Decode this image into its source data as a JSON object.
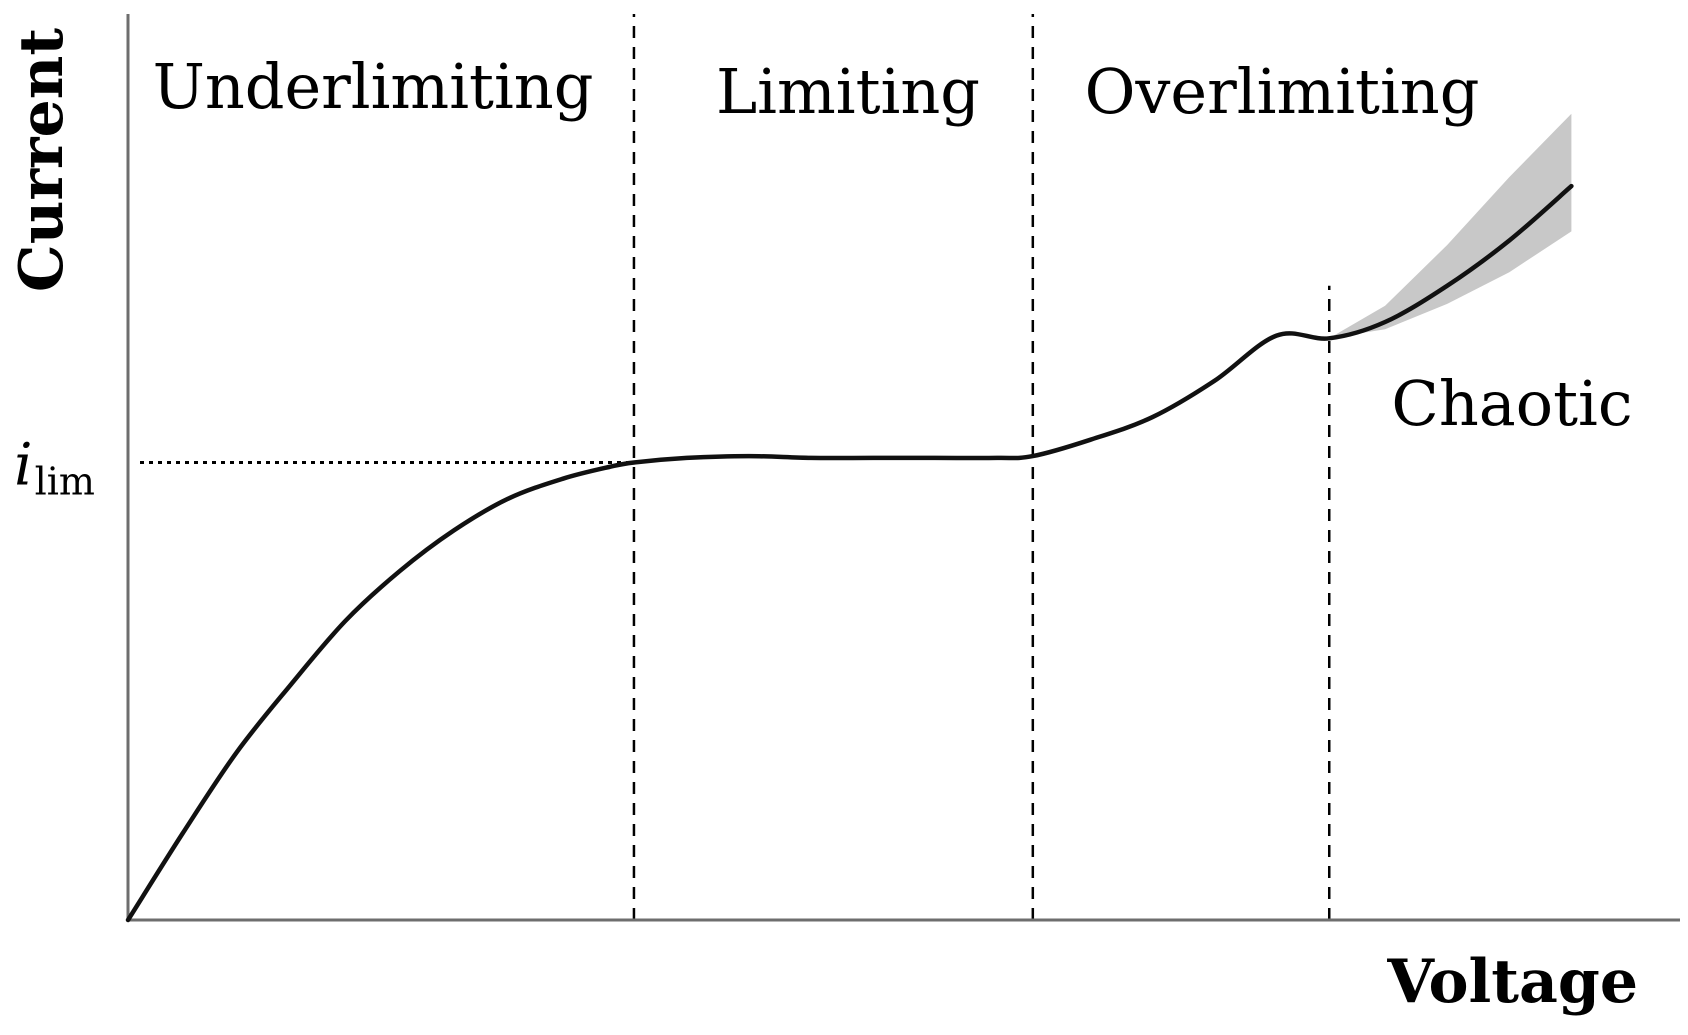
{
  "chart_data": {
    "type": "line",
    "title": "",
    "xlabel": "Voltage",
    "ylabel": "Current",
    "xlim": [
      0,
      10
    ],
    "ylim": [
      0,
      10
    ],
    "grid": false,
    "y_tick_labels": [
      {
        "value": 5.05,
        "main": "i",
        "sub": "lim"
      }
    ],
    "regions": [
      {
        "label": "Underlimiting",
        "x_start": 0,
        "x_end": 3.26
      },
      {
        "label": "Limiting",
        "x_start": 3.26,
        "x_end": 5.83
      },
      {
        "label": "Overlimiting",
        "x_start": 5.83,
        "x_end": 7.74
      },
      {
        "label": "Chaotic",
        "x_start": 7.74,
        "x_end": 9.3
      }
    ],
    "boundaries": [
      {
        "x": 3.26,
        "y_top": 10
      },
      {
        "x": 5.83,
        "y_top": 10
      },
      {
        "x": 7.74,
        "y_top": 7.0
      }
    ],
    "series": [
      {
        "x": [
          0,
          0.35,
          0.7,
          1.05,
          1.4,
          1.75,
          2.1,
          2.45,
          2.8,
          3.1,
          3.26,
          3.6,
          4.0,
          4.4,
          4.8,
          5.2,
          5.6,
          5.83,
          6.2,
          6.6,
          7.0,
          7.4,
          7.74,
          8.1,
          8.5,
          8.9,
          9.3
        ],
        "y": [
          0,
          0.95,
          1.85,
          2.6,
          3.3,
          3.85,
          4.3,
          4.65,
          4.87,
          5.0,
          5.05,
          5.1,
          5.12,
          5.1,
          5.1,
          5.1,
          5.1,
          5.12,
          5.3,
          5.55,
          5.95,
          6.45,
          6.42,
          6.6,
          7.0,
          7.5,
          8.1
        ]
      }
    ],
    "uncertainty_band": {
      "x": [
        7.74,
        8.1,
        8.5,
        8.9,
        9.3
      ],
      "y_lower": [
        6.42,
        6.52,
        6.8,
        7.15,
        7.6
      ],
      "y_upper": [
        6.42,
        6.78,
        7.45,
        8.2,
        8.9
      ]
    }
  }
}
